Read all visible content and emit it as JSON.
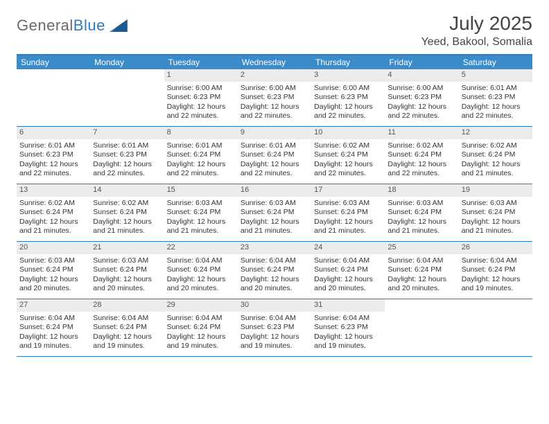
{
  "brand": {
    "name_part1": "General",
    "name_part2": "Blue"
  },
  "title": "July 2025",
  "location": "Yeed, Bakool, Somalia",
  "colors": {
    "header_blue": "#3b8bc9",
    "border_blue": "#2f7ac0",
    "daynum_bg": "#ececec",
    "text": "#333333"
  },
  "weekdays": [
    "Sunday",
    "Monday",
    "Tuesday",
    "Wednesday",
    "Thursday",
    "Friday",
    "Saturday"
  ],
  "weeks": [
    [
      {
        "empty": true
      },
      {
        "empty": true
      },
      {
        "num": "1",
        "sunrise": "Sunrise: 6:00 AM",
        "sunset": "Sunset: 6:23 PM",
        "daylight": "Daylight: 12 hours and 22 minutes."
      },
      {
        "num": "2",
        "sunrise": "Sunrise: 6:00 AM",
        "sunset": "Sunset: 6:23 PM",
        "daylight": "Daylight: 12 hours and 22 minutes."
      },
      {
        "num": "3",
        "sunrise": "Sunrise: 6:00 AM",
        "sunset": "Sunset: 6:23 PM",
        "daylight": "Daylight: 12 hours and 22 minutes."
      },
      {
        "num": "4",
        "sunrise": "Sunrise: 6:00 AM",
        "sunset": "Sunset: 6:23 PM",
        "daylight": "Daylight: 12 hours and 22 minutes."
      },
      {
        "num": "5",
        "sunrise": "Sunrise: 6:01 AM",
        "sunset": "Sunset: 6:23 PM",
        "daylight": "Daylight: 12 hours and 22 minutes."
      }
    ],
    [
      {
        "num": "6",
        "sunrise": "Sunrise: 6:01 AM",
        "sunset": "Sunset: 6:23 PM",
        "daylight": "Daylight: 12 hours and 22 minutes."
      },
      {
        "num": "7",
        "sunrise": "Sunrise: 6:01 AM",
        "sunset": "Sunset: 6:23 PM",
        "daylight": "Daylight: 12 hours and 22 minutes."
      },
      {
        "num": "8",
        "sunrise": "Sunrise: 6:01 AM",
        "sunset": "Sunset: 6:24 PM",
        "daylight": "Daylight: 12 hours and 22 minutes."
      },
      {
        "num": "9",
        "sunrise": "Sunrise: 6:01 AM",
        "sunset": "Sunset: 6:24 PM",
        "daylight": "Daylight: 12 hours and 22 minutes."
      },
      {
        "num": "10",
        "sunrise": "Sunrise: 6:02 AM",
        "sunset": "Sunset: 6:24 PM",
        "daylight": "Daylight: 12 hours and 22 minutes."
      },
      {
        "num": "11",
        "sunrise": "Sunrise: 6:02 AM",
        "sunset": "Sunset: 6:24 PM",
        "daylight": "Daylight: 12 hours and 22 minutes."
      },
      {
        "num": "12",
        "sunrise": "Sunrise: 6:02 AM",
        "sunset": "Sunset: 6:24 PM",
        "daylight": "Daylight: 12 hours and 21 minutes."
      }
    ],
    [
      {
        "num": "13",
        "sunrise": "Sunrise: 6:02 AM",
        "sunset": "Sunset: 6:24 PM",
        "daylight": "Daylight: 12 hours and 21 minutes."
      },
      {
        "num": "14",
        "sunrise": "Sunrise: 6:02 AM",
        "sunset": "Sunset: 6:24 PM",
        "daylight": "Daylight: 12 hours and 21 minutes."
      },
      {
        "num": "15",
        "sunrise": "Sunrise: 6:03 AM",
        "sunset": "Sunset: 6:24 PM",
        "daylight": "Daylight: 12 hours and 21 minutes."
      },
      {
        "num": "16",
        "sunrise": "Sunrise: 6:03 AM",
        "sunset": "Sunset: 6:24 PM",
        "daylight": "Daylight: 12 hours and 21 minutes."
      },
      {
        "num": "17",
        "sunrise": "Sunrise: 6:03 AM",
        "sunset": "Sunset: 6:24 PM",
        "daylight": "Daylight: 12 hours and 21 minutes."
      },
      {
        "num": "18",
        "sunrise": "Sunrise: 6:03 AM",
        "sunset": "Sunset: 6:24 PM",
        "daylight": "Daylight: 12 hours and 21 minutes."
      },
      {
        "num": "19",
        "sunrise": "Sunrise: 6:03 AM",
        "sunset": "Sunset: 6:24 PM",
        "daylight": "Daylight: 12 hours and 21 minutes."
      }
    ],
    [
      {
        "num": "20",
        "sunrise": "Sunrise: 6:03 AM",
        "sunset": "Sunset: 6:24 PM",
        "daylight": "Daylight: 12 hours and 20 minutes."
      },
      {
        "num": "21",
        "sunrise": "Sunrise: 6:03 AM",
        "sunset": "Sunset: 6:24 PM",
        "daylight": "Daylight: 12 hours and 20 minutes."
      },
      {
        "num": "22",
        "sunrise": "Sunrise: 6:04 AM",
        "sunset": "Sunset: 6:24 PM",
        "daylight": "Daylight: 12 hours and 20 minutes."
      },
      {
        "num": "23",
        "sunrise": "Sunrise: 6:04 AM",
        "sunset": "Sunset: 6:24 PM",
        "daylight": "Daylight: 12 hours and 20 minutes."
      },
      {
        "num": "24",
        "sunrise": "Sunrise: 6:04 AM",
        "sunset": "Sunset: 6:24 PM",
        "daylight": "Daylight: 12 hours and 20 minutes."
      },
      {
        "num": "25",
        "sunrise": "Sunrise: 6:04 AM",
        "sunset": "Sunset: 6:24 PM",
        "daylight": "Daylight: 12 hours and 20 minutes."
      },
      {
        "num": "26",
        "sunrise": "Sunrise: 6:04 AM",
        "sunset": "Sunset: 6:24 PM",
        "daylight": "Daylight: 12 hours and 19 minutes."
      }
    ],
    [
      {
        "num": "27",
        "sunrise": "Sunrise: 6:04 AM",
        "sunset": "Sunset: 6:24 PM",
        "daylight": "Daylight: 12 hours and 19 minutes."
      },
      {
        "num": "28",
        "sunrise": "Sunrise: 6:04 AM",
        "sunset": "Sunset: 6:24 PM",
        "daylight": "Daylight: 12 hours and 19 minutes."
      },
      {
        "num": "29",
        "sunrise": "Sunrise: 6:04 AM",
        "sunset": "Sunset: 6:24 PM",
        "daylight": "Daylight: 12 hours and 19 minutes."
      },
      {
        "num": "30",
        "sunrise": "Sunrise: 6:04 AM",
        "sunset": "Sunset: 6:23 PM",
        "daylight": "Daylight: 12 hours and 19 minutes."
      },
      {
        "num": "31",
        "sunrise": "Sunrise: 6:04 AM",
        "sunset": "Sunset: 6:23 PM",
        "daylight": "Daylight: 12 hours and 19 minutes."
      },
      {
        "empty": true
      },
      {
        "empty": true
      }
    ]
  ]
}
